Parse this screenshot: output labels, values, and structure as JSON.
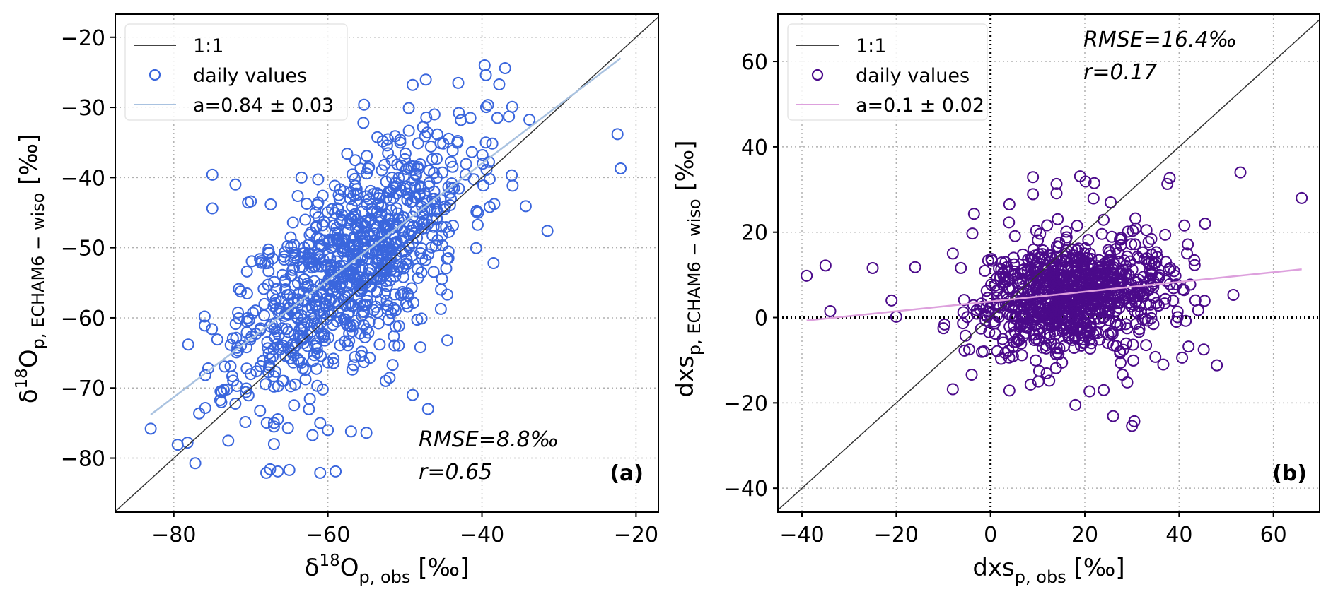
{
  "chart_data": [
    {
      "type": "scatter",
      "panel_label": "(a)",
      "xlabel": {
        "base": "δ",
        "sup": "18",
        "main": "O",
        "sub": "p, obs",
        "unit": " [‰]"
      },
      "ylabel": {
        "base": "δ",
        "sup": "18",
        "main": "O",
        "sub": "p, ECHAM6 − wiso",
        "unit": " [‰]"
      },
      "xlim": [
        -87.6,
        -17.1
      ],
      "ylim": [
        -87.7,
        -16.7
      ],
      "xticks": [
        -80,
        -60,
        -40,
        -20
      ],
      "yticks": [
        -80,
        -70,
        -60,
        -50,
        -40,
        -30,
        -20
      ],
      "xtick_labels": [
        "−80",
        "−60",
        "−40",
        "−20"
      ],
      "ytick_labels": [
        "−80",
        "−70",
        "−60",
        "−50",
        "−40",
        "−30",
        "−20"
      ],
      "grid": true,
      "legend_position": "top-left",
      "legend": [
        {
          "kind": "line",
          "label": "1:1",
          "color": "#444444"
        },
        {
          "kind": "marker",
          "label": "daily values",
          "color": "#3a66dd"
        },
        {
          "kind": "line",
          "label": "a=0.84 ± 0.03",
          "color": "#a9c2e0"
        }
      ],
      "annotations": {
        "rmse": "RMSE=8.8‰",
        "r": "r=0.65"
      },
      "marker_color": "#3a66dd",
      "fit_color": "#a9c2e0",
      "one_to_one": true,
      "zero_lines": false,
      "fit_line": {
        "slope": 0.84,
        "x_start": -83,
        "y_start": -73.8,
        "x_end": -22,
        "y_end": -23
      },
      "cloud": {
        "n": 900,
        "x_mean": -57,
        "x_sd": 7.5,
        "slope": 0.84,
        "intercept": -4.2,
        "resid_sd": 6.8,
        "seed": 11
      },
      "outliers": [
        [
          -83,
          -75.8
        ],
        [
          -79.5,
          -78.1
        ],
        [
          -76,
          -59.8
        ],
        [
          -75,
          -39.6
        ],
        [
          -75,
          -44.4
        ],
        [
          -72,
          -41
        ],
        [
          -70,
          -43.4
        ],
        [
          -68,
          -82.1
        ],
        [
          -67.5,
          -81.6
        ],
        [
          -66.5,
          -81.9
        ],
        [
          -65,
          -81.7
        ],
        [
          -61,
          -82.1
        ],
        [
          -59,
          -81.9
        ],
        [
          -67,
          -75
        ],
        [
          -67,
          -78
        ],
        [
          -67,
          -75.5
        ],
        [
          -61,
          -75
        ],
        [
          -60,
          -76
        ],
        [
          -57,
          -76.2
        ],
        [
          -55,
          -76.4
        ],
        [
          -49,
          -26.8
        ],
        [
          -49.5,
          -30.1
        ],
        [
          -37,
          -24.4
        ],
        [
          -22,
          -38.7
        ],
        [
          -31.5,
          -47.6
        ],
        [
          -38.5,
          -52.2
        ],
        [
          -39,
          -44.2
        ],
        [
          -44.5,
          -56.7
        ],
        [
          -44.5,
          -63.2
        ],
        [
          -57.5,
          -36.6
        ],
        [
          -43,
          -30.8
        ],
        [
          -41.5,
          -31.5
        ],
        [
          -38,
          -31.5
        ],
        [
          -36.5,
          -31.3
        ],
        [
          -39.5,
          -35
        ],
        [
          -39,
          -40.2
        ],
        [
          -49,
          -71
        ],
        [
          -47,
          -73
        ],
        [
          -48,
          -64.2
        ],
        [
          -52.5,
          -69
        ]
      ]
    },
    {
      "type": "scatter",
      "panel_label": "(b)",
      "xlabel": {
        "base": "dxs",
        "sup": "",
        "main": "",
        "sub": "p, obs",
        "unit": " [‰]"
      },
      "ylabel": {
        "base": "dxs",
        "sup": "",
        "main": "",
        "sub": "p, ECHAM6 − wiso",
        "unit": " [‰]"
      },
      "xlim": [
        -45.1,
        69.8
      ],
      "ylim": [
        -45.6,
        71.1
      ],
      "xticks": [
        -40,
        -20,
        0,
        20,
        40,
        60
      ],
      "yticks": [
        -40,
        -20,
        0,
        20,
        40,
        60
      ],
      "xtick_labels": [
        "−40",
        "−20",
        "0",
        "20",
        "40",
        "60"
      ],
      "ytick_labels": [
        "−40",
        "−20",
        "0",
        "20",
        "40",
        "60"
      ],
      "grid": true,
      "legend_position": "top-left",
      "legend": [
        {
          "kind": "line",
          "label": "1:1",
          "color": "#444444"
        },
        {
          "kind": "marker",
          "label": "daily values",
          "color": "#4b0a8a"
        },
        {
          "kind": "line",
          "label": "a=0.1 ± 0.02",
          "color": "#dda0dd"
        }
      ],
      "annotations": {
        "rmse": "RMSE=16.4‰",
        "r": "r=0.17"
      },
      "marker_color": "#4b0a8a",
      "fit_color": "#dda0dd",
      "one_to_one": true,
      "zero_lines": true,
      "fit_line": {
        "slope": 0.1,
        "x_start": -39,
        "y_start": -0.7,
        "x_end": 66,
        "y_end": 11.3
      },
      "cloud": {
        "n": 900,
        "x_mean": 17,
        "x_sd": 10,
        "slope": 0.1,
        "intercept": 3.5,
        "resid_sd": 6.5,
        "seed": 29
      },
      "outliers": [
        [
          -39,
          9.8
        ],
        [
          -35,
          12.2
        ],
        [
          -34,
          1.5
        ],
        [
          -25,
          11.6
        ],
        [
          -21,
          4
        ],
        [
          -20,
          0.2
        ],
        [
          -16,
          11.8
        ],
        [
          -8,
          15
        ],
        [
          -3.5,
          24.3
        ],
        [
          -4,
          -13.4
        ],
        [
          -8,
          -16.8
        ],
        [
          4,
          26.5
        ],
        [
          9,
          32.9
        ],
        [
          9,
          28.9
        ],
        [
          14,
          31.3
        ],
        [
          14,
          29.1
        ],
        [
          19,
          33.1
        ],
        [
          22,
          31.5
        ],
        [
          12,
          21.6
        ],
        [
          38,
          32.7
        ],
        [
          37.5,
          31.3
        ],
        [
          53,
          34
        ],
        [
          66,
          28
        ],
        [
          45.5,
          22
        ],
        [
          51.5,
          5.3
        ],
        [
          48,
          -11.2
        ],
        [
          42,
          -6.8
        ],
        [
          4,
          -17.1
        ],
        [
          8.5,
          -15.7
        ],
        [
          18,
          -20.5
        ],
        [
          26,
          -23.1
        ],
        [
          30,
          -25.4
        ],
        [
          30.5,
          -24.3
        ],
        [
          21,
          -17.3
        ],
        [
          29,
          -15.2
        ],
        [
          24,
          -17
        ],
        [
          28,
          -13.4
        ]
      ]
    }
  ]
}
